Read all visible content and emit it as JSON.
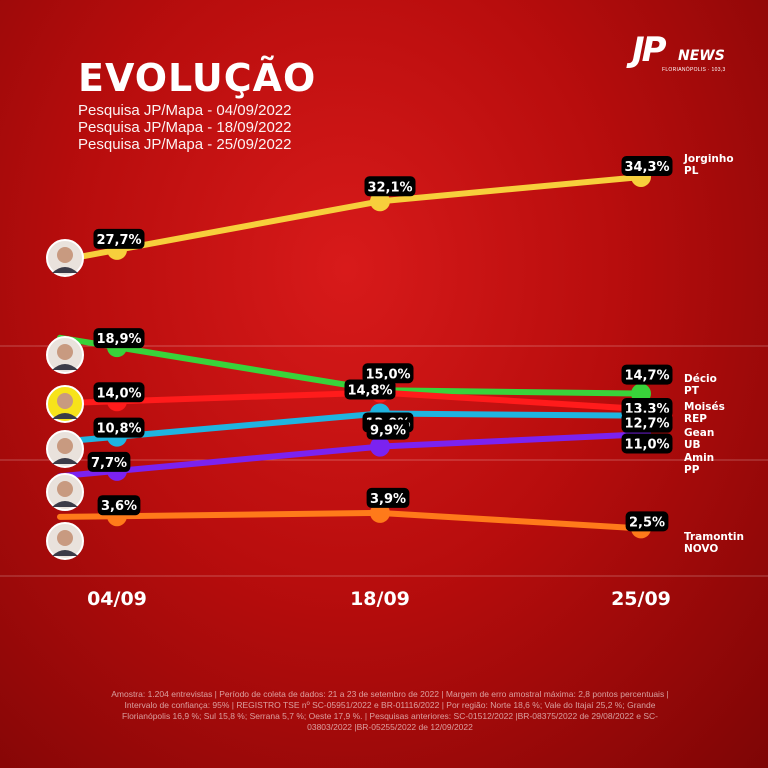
{
  "header": {
    "title": "EVOLUÇÃO",
    "subtitles": [
      "Pesquisa JP/Mapa - 04/09/2022",
      "Pesquisa JP/Mapa - 18/09/2022",
      "Pesquisa JP/Mapa - 25/09/2022"
    ]
  },
  "logo": {
    "brand": "JP",
    "news": "NEWS",
    "sub": "FLORIANÓPOLIS · 103,3"
  },
  "chart_data": {
    "type": "line",
    "x": [
      "04/09",
      "18/09",
      "25/09"
    ],
    "series": [
      {
        "name": "Jorginho",
        "party": "PL",
        "color": "#f7cf3c",
        "values": [
          27.7,
          32.1,
          34.3
        ],
        "labels": [
          "27,7%",
          "32,1%",
          "34,3%"
        ]
      },
      {
        "name": "Décio",
        "party": "PT",
        "color": "#39d33a",
        "values": [
          18.9,
          15.0,
          14.7
        ],
        "labels": [
          "18,9%",
          "15,0%",
          "14,7%"
        ]
      },
      {
        "name": "Moisés",
        "party": "REP",
        "color": "#ff1b1b",
        "values": [
          14.0,
          14.8,
          13.3
        ],
        "labels": [
          "14,0%",
          "14,8%",
          "13,3%"
        ]
      },
      {
        "name": "Gean",
        "party": "UB",
        "color": "#1fb4e0",
        "values": [
          10.8,
          12.9,
          12.7
        ],
        "labels": [
          "10,8%",
          "12,9%",
          "12,7%"
        ]
      },
      {
        "name": "Amin",
        "party": "PP",
        "color": "#7b22f0",
        "values": [
          7.7,
          9.9,
          11.0
        ],
        "labels": [
          "7,7%",
          "9,9%",
          "11,0%"
        ]
      },
      {
        "name": "Tramontin",
        "party": "NOVO",
        "color": "#ff7a1a",
        "values": [
          3.6,
          3.9,
          2.5
        ],
        "labels": [
          "3,6%",
          "3,9%",
          "2,5%"
        ]
      }
    ]
  },
  "footer": {
    "text": "Amostra: 1.204 entrevistas | Período de coleta de dados: 21 a 23 de setembro de 2022 | Margem de erro amostral máxima: 2,8 pontos percentuais | Intervalo de confiança: 95% | REGISTRO TSE nº SC-05951/2022 e BR-01116/2022 | Por região: Norte 18,6 %; Vale do Itajaí 25,2 %; Grande Florianópolis 16,9 %; Sul 15,8 %; Serrana 5,7 %; Oeste 17,9 %. | Pesquisas anteriores: SC-01512/2022 |BR-08375/2022 de 29/08/2022 e SC-03803/2022 |BR-05255/2022 de 12/09/2022"
  }
}
